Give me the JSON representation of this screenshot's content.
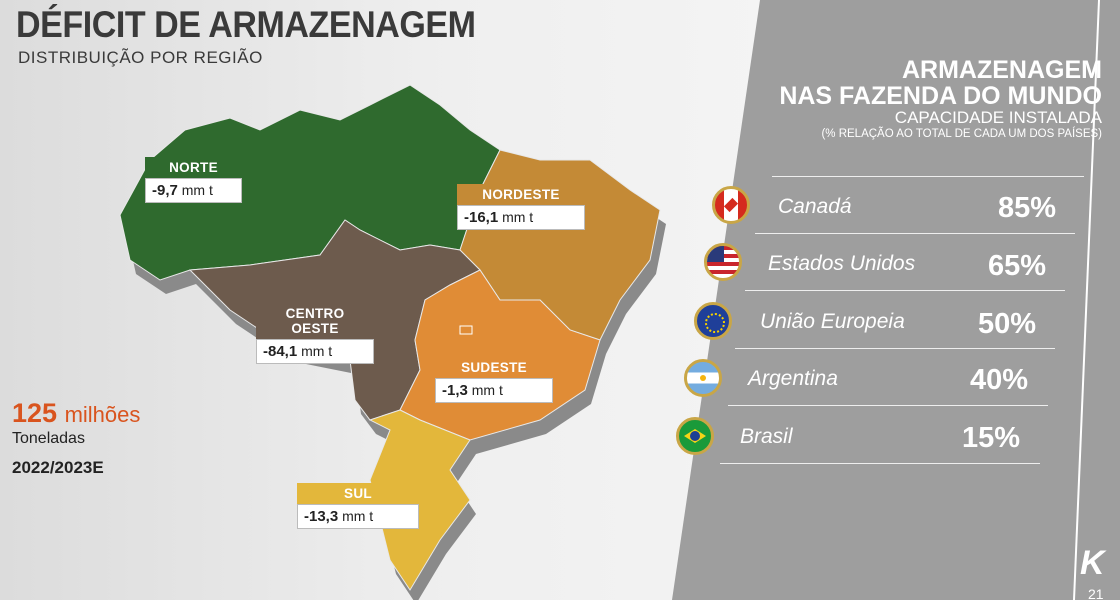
{
  "header": {
    "title": "DÉFICIT DE ARMAZENAGEM",
    "subtitle": "DISTRIBUIÇÃO POR REGIÃO"
  },
  "regions": [
    {
      "name": "NORTE",
      "value": "-9,7",
      "unit": "mm t",
      "color": "#2f6a2e"
    },
    {
      "name": "NORDESTE",
      "value": "-16,1",
      "unit": "mm t",
      "color": "#c48a36"
    },
    {
      "name": "CENTRO OESTE",
      "value": "-84,1",
      "unit": "mm t",
      "color": "#6d5b4d"
    },
    {
      "name": "SUDESTE",
      "value": "-1,3",
      "unit": "mm t",
      "color": "#e08c36"
    },
    {
      "name": "SUL",
      "value": "-13,3",
      "unit": "mm t",
      "color": "#e3b73b"
    }
  ],
  "total": {
    "value": "125",
    "unit": "milhões",
    "label": "Toneladas",
    "period": "2022/2023E",
    "color": "#d9541e"
  },
  "panel": {
    "title1": "ARMAZENAGEM",
    "title2": "NAS FAZENDA DO MUNDO",
    "subtitle": "CAPACIDADE INSTALADA",
    "note": "(% RELAÇÃO AO TOTAL DE CADA UM DOS PAÍSES)",
    "rows": [
      {
        "country": "Canadá",
        "value": "85%",
        "flag": "canada-flag-icon"
      },
      {
        "country": "Estados Unidos",
        "value": "65%",
        "flag": "usa-flag-icon"
      },
      {
        "country": "União Europeia",
        "value": "50%",
        "flag": "eu-flag-icon"
      },
      {
        "country": "Argentina",
        "value": "40%",
        "flag": "argentina-flag-icon"
      },
      {
        "country": "Brasil",
        "value": "15%",
        "flag": "brazil-flag-icon"
      }
    ]
  },
  "footer": {
    "logo": "K",
    "page": "21"
  }
}
